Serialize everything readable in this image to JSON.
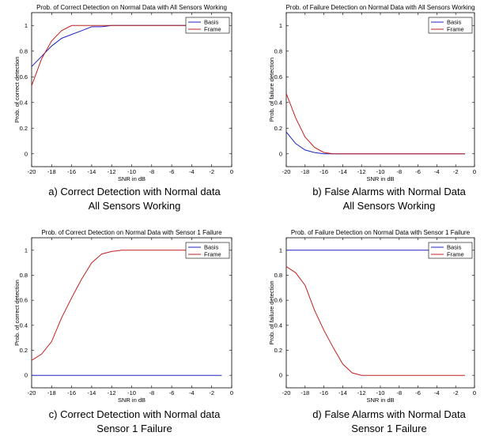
{
  "chart_data": [
    {
      "type": "line",
      "title": "Prob. of Correct Detection on Normal Data with All Sensors Working",
      "xlabel": "SNR in dB",
      "ylabel": "Prob. of correct detection",
      "xlim": [
        -20,
        0
      ],
      "ylim": [
        -0.1,
        1.1
      ],
      "xticks": [
        -20,
        -18,
        -16,
        -14,
        -12,
        -10,
        -8,
        -6,
        -4,
        -2,
        0
      ],
      "yticks": [
        0,
        0.2,
        0.4,
        0.6,
        0.8,
        1
      ],
      "legend": "top-right",
      "x": [
        -20,
        -19,
        -18,
        -17,
        -16,
        -15,
        -14,
        -13,
        -12,
        -11,
        -10,
        -9,
        -8,
        -7,
        -6,
        -5,
        -4,
        -3,
        -2,
        -1
      ],
      "series": [
        {
          "name": "Basis",
          "color": "#2020c0",
          "values": [
            0.68,
            0.76,
            0.84,
            0.9,
            0.93,
            0.96,
            0.99,
            0.99,
            1.0,
            1.0,
            1.0,
            1.0,
            1.0,
            1.0,
            1.0,
            1.0,
            1.0,
            1.0,
            1.0,
            1.0
          ]
        },
        {
          "name": "Frame",
          "color": "#c02020",
          "values": [
            0.53,
            0.74,
            0.88,
            0.96,
            1.0,
            1.0,
            1.0,
            1.0,
            1.0,
            1.0,
            1.0,
            1.0,
            1.0,
            1.0,
            1.0,
            1.0,
            1.0,
            1.0,
            1.0,
            1.0
          ]
        }
      ],
      "caption": [
        "a) Correct Detection with Normal data",
        "All Sensors Working"
      ]
    },
    {
      "type": "line",
      "title": "Prob. of Failure Detection on Normal Data with All Sensors Working",
      "xlabel": "SNR in dB",
      "ylabel": "Prob. of failure detection",
      "xlim": [
        -20,
        0
      ],
      "ylim": [
        -0.1,
        1.1
      ],
      "xticks": [
        -20,
        -18,
        -16,
        -14,
        -12,
        -10,
        -8,
        -6,
        -4,
        -2,
        0
      ],
      "yticks": [
        0,
        0.2,
        0.4,
        0.6,
        0.8,
        1
      ],
      "legend": "top-right",
      "x": [
        -20,
        -19,
        -18,
        -17,
        -16,
        -15,
        -14,
        -13,
        -12,
        -11,
        -10,
        -9,
        -8,
        -7,
        -6,
        -5,
        -4,
        -3,
        -2,
        -1
      ],
      "series": [
        {
          "name": "Basis",
          "color": "#2020c0",
          "values": [
            0.17,
            0.08,
            0.03,
            0.01,
            0.0,
            0.0,
            0.0,
            0.0,
            0.0,
            0.0,
            0.0,
            0.0,
            0.0,
            0.0,
            0.0,
            0.0,
            0.0,
            0.0,
            0.0,
            0.0
          ]
        },
        {
          "name": "Frame",
          "color": "#c02020",
          "values": [
            0.47,
            0.28,
            0.13,
            0.05,
            0.01,
            0.0,
            0.0,
            0.0,
            0.0,
            0.0,
            0.0,
            0.0,
            0.0,
            0.0,
            0.0,
            0.0,
            0.0,
            0.0,
            0.0,
            0.0
          ]
        }
      ],
      "caption": [
        "b) False Alarms with Normal Data",
        "All Sensors Working"
      ]
    },
    {
      "type": "line",
      "title": "Prob. of Correct Detection on Normal Data with Sensor 1 Failure",
      "xlabel": "SNR in dB",
      "ylabel": "Prob. of correct detection",
      "xlim": [
        -20,
        0
      ],
      "ylim": [
        -0.1,
        1.1
      ],
      "xticks": [
        -20,
        -18,
        -16,
        -14,
        -12,
        -10,
        -8,
        -6,
        -4,
        -2,
        0
      ],
      "yticks": [
        0,
        0.2,
        0.4,
        0.6,
        0.8,
        1
      ],
      "legend": "top-right",
      "x": [
        -20,
        -19,
        -18,
        -17,
        -16,
        -15,
        -14,
        -13,
        -12,
        -11,
        -10,
        -9,
        -8,
        -7,
        -6,
        -5,
        -4,
        -3,
        -2,
        -1
      ],
      "series": [
        {
          "name": "Basis",
          "color": "#2020c0",
          "values": [
            0.0,
            0.0,
            0.0,
            0.0,
            0.0,
            0.0,
            0.0,
            0.0,
            0.0,
            0.0,
            0.0,
            0.0,
            0.0,
            0.0,
            0.0,
            0.0,
            0.0,
            0.0,
            0.0,
            0.0
          ]
        },
        {
          "name": "Frame",
          "color": "#c02020",
          "values": [
            0.12,
            0.17,
            0.27,
            0.46,
            0.62,
            0.77,
            0.9,
            0.97,
            0.99,
            1.0,
            1.0,
            1.0,
            1.0,
            1.0,
            1.0,
            1.0,
            1.0,
            1.0,
            1.0,
            1.0
          ]
        }
      ],
      "caption": [
        "c) Correct Detection with Normal data",
        "Sensor 1 Failure"
      ]
    },
    {
      "type": "line",
      "title": "Prob. of Failure Detection on Normal Data with Sensor 1 Failure",
      "xlabel": "SNR in dB",
      "ylabel": "Prob. of failure detection",
      "xlim": [
        -20,
        0
      ],
      "ylim": [
        -0.1,
        1.1
      ],
      "xticks": [
        -20,
        -18,
        -16,
        -14,
        -12,
        -10,
        -8,
        -6,
        -4,
        -2,
        0
      ],
      "yticks": [
        0,
        0.2,
        0.4,
        0.6,
        0.8,
        1
      ],
      "legend": "top-right",
      "x": [
        -20,
        -19,
        -18,
        -17,
        -16,
        -15,
        -14,
        -13,
        -12,
        -11,
        -10,
        -9,
        -8,
        -7,
        -6,
        -5,
        -4,
        -3,
        -2,
        -1
      ],
      "series": [
        {
          "name": "Basis",
          "color": "#2020c0",
          "values": [
            1.0,
            1.0,
            1.0,
            1.0,
            1.0,
            1.0,
            1.0,
            1.0,
            1.0,
            1.0,
            1.0,
            1.0,
            1.0,
            1.0,
            1.0,
            1.0,
            1.0,
            1.0,
            1.0,
            1.0
          ]
        },
        {
          "name": "Frame",
          "color": "#c02020",
          "values": [
            0.87,
            0.82,
            0.72,
            0.52,
            0.36,
            0.22,
            0.09,
            0.02,
            0.0,
            0.0,
            0.0,
            0.0,
            0.0,
            0.0,
            0.0,
            0.0,
            0.0,
            0.0,
            0.0,
            0.0
          ]
        }
      ],
      "caption": [
        "d) False Alarms with Normal Data",
        "Sensor 1 Failure"
      ]
    }
  ]
}
